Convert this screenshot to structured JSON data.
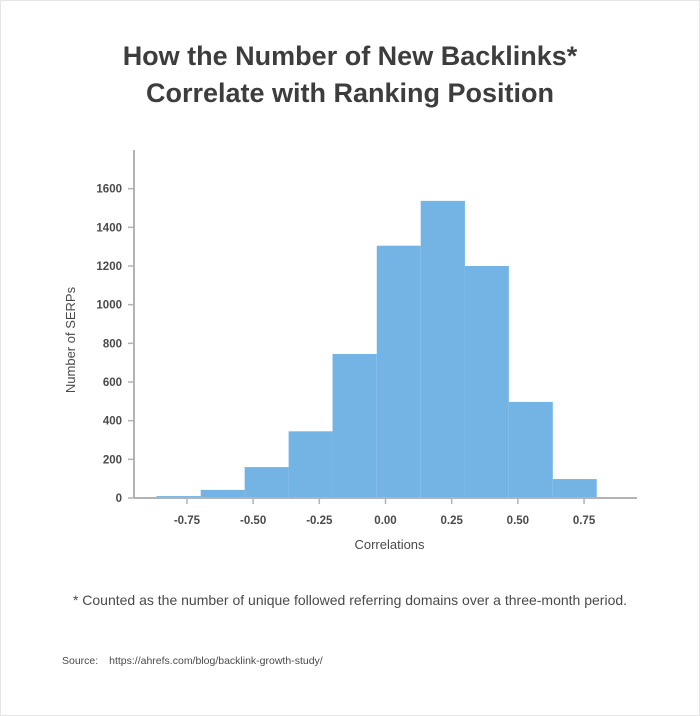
{
  "title_line1": "How the Number of New Backlinks*",
  "title_line2": "Correlate with Ranking Position",
  "footnote": "* Counted as the number of unique followed referring domains over a three-month period.",
  "source_label": "Source:",
  "source_url": "https://ahrefs.com/blog/backlink-growth-study/",
  "colors": {
    "bar": "#74b4e5",
    "axis": "#b3b3b3",
    "text": "#4a4a4a"
  },
  "chart_data": {
    "type": "bar",
    "title": "How the Number of New Backlinks* Correlate with Ranking Position",
    "xlabel": "Correlations",
    "ylabel": "Number of SERPs",
    "xlim": [
      -0.95,
      0.95
    ],
    "ylim": [
      0,
      1800
    ],
    "x_ticks": [
      -0.75,
      -0.5,
      -0.25,
      0.0,
      0.25,
      0.5,
      0.75
    ],
    "x_tick_labels": [
      "-0.75",
      "-0.50",
      "-0.25",
      "0.00",
      "0.25",
      "0.50",
      "0.75"
    ],
    "y_ticks": [
      0,
      200,
      400,
      600,
      800,
      1000,
      1200,
      1400,
      1600
    ],
    "y_tick_labels": [
      "0",
      "200",
      "400",
      "600",
      "800",
      "1000",
      "1200",
      "1400",
      "1600"
    ],
    "grid": false,
    "bins": [
      {
        "x0": -0.865,
        "x1": -0.698,
        "value": 10
      },
      {
        "x0": -0.698,
        "x1": -0.532,
        "value": 42
      },
      {
        "x0": -0.532,
        "x1": -0.366,
        "value": 160
      },
      {
        "x0": -0.366,
        "x1": -0.2,
        "value": 345
      },
      {
        "x0": -0.2,
        "x1": -0.033,
        "value": 745
      },
      {
        "x0": -0.033,
        "x1": 0.133,
        "value": 1305
      },
      {
        "x0": 0.133,
        "x1": 0.3,
        "value": 1537
      },
      {
        "x0": 0.3,
        "x1": 0.466,
        "value": 1200
      },
      {
        "x0": 0.466,
        "x1": 0.632,
        "value": 497
      },
      {
        "x0": 0.632,
        "x1": 0.798,
        "value": 98
      }
    ]
  }
}
